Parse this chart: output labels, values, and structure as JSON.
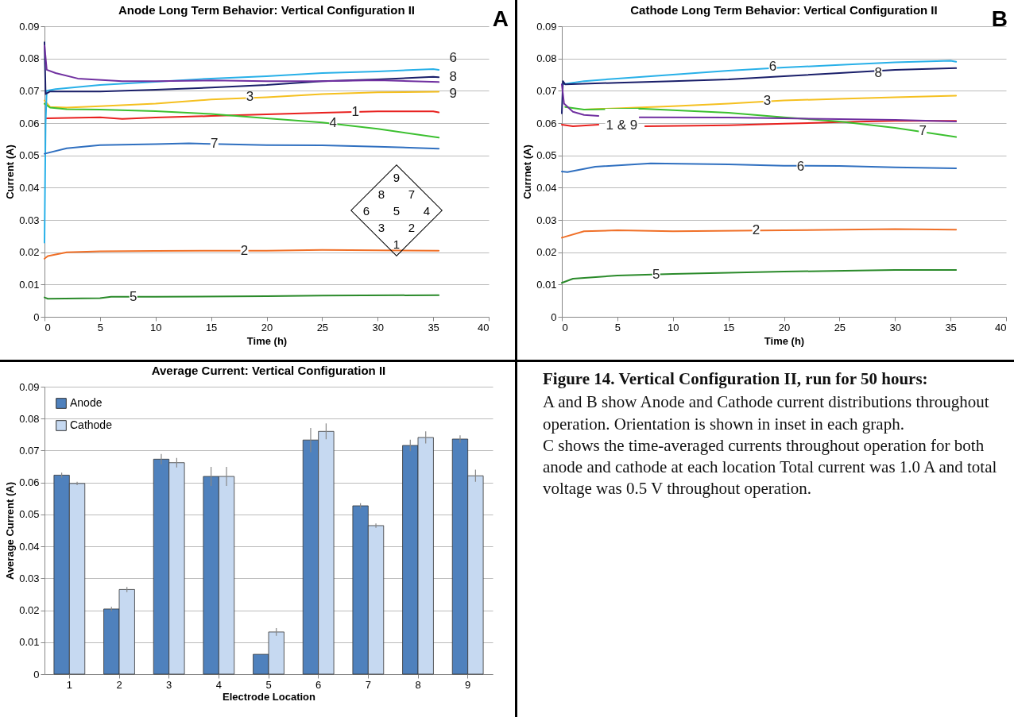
{
  "chart_data": [
    {
      "type": "line",
      "title": "Anode Long Term Behavior: Vertical Configuration II",
      "xlabel": "Time (h)",
      "ylabel": "Current (A)",
      "xlim": [
        0,
        40
      ],
      "xticks": [
        0,
        5,
        10,
        15,
        20,
        25,
        30,
        35,
        40
      ],
      "ylim": [
        0,
        0.09
      ],
      "yticks": [
        0,
        0.01,
        0.02,
        0.03,
        0.04,
        0.05,
        0.06,
        0.07,
        0.08,
        0.09
      ],
      "grid": "y",
      "series": [
        {
          "color": "#e8211f",
          "x": [
            0.2,
            5,
            7,
            10,
            15,
            20,
            25,
            30,
            35,
            35.5
          ],
          "values": [
            0.0615,
            0.0618,
            0.0613,
            0.0617,
            0.0622,
            0.0627,
            0.0632,
            0.0636,
            0.0636,
            0.0633
          ]
        },
        {
          "color": "#f07028",
          "x": [
            0,
            0.3,
            2,
            5,
            10,
            20,
            25,
            30,
            35.5
          ],
          "values": [
            0.018,
            0.0188,
            0.02,
            0.0203,
            0.0204,
            0.0205,
            0.0207,
            0.0206,
            0.0205
          ]
        },
        {
          "color": "#f5c020",
          "x": [
            0,
            0.5,
            2,
            5,
            10,
            15,
            20,
            25,
            30,
            35.5
          ],
          "values": [
            0.067,
            0.065,
            0.0648,
            0.0652,
            0.066,
            0.0673,
            0.068,
            0.069,
            0.0695,
            0.0697
          ]
        },
        {
          "color": "#3cc030",
          "x": [
            0,
            0.5,
            2,
            5,
            10,
            15,
            20,
            25,
            30,
            35.5
          ],
          "values": [
            0.066,
            0.0648,
            0.0643,
            0.0642,
            0.0637,
            0.0628,
            0.0615,
            0.0602,
            0.0582,
            0.0555
          ]
        },
        {
          "color": "#2a8a2a",
          "x": [
            0,
            0.3,
            5,
            6,
            10,
            20,
            25,
            35.5
          ],
          "values": [
            0.006,
            0.0056,
            0.0058,
            0.0062,
            0.0062,
            0.0064,
            0.0066,
            0.0067
          ]
        },
        {
          "name": "6",
          "color": "#28b0e8",
          "x": [
            0,
            0.1,
            0.2,
            1,
            5,
            10,
            15,
            20,
            25,
            30,
            35,
            35.5
          ],
          "values": [
            0.023,
            0.06,
            0.07,
            0.0705,
            0.0718,
            0.0728,
            0.0738,
            0.0745,
            0.0755,
            0.076,
            0.0767,
            0.0765
          ]
        },
        {
          "color": "#3070c0",
          "x": [
            0,
            2,
            5,
            10,
            13,
            20,
            25,
            30,
            35.5
          ],
          "values": [
            0.0505,
            0.0522,
            0.0532,
            0.0535,
            0.0537,
            0.0532,
            0.0531,
            0.0527,
            0.0521
          ]
        },
        {
          "name": "8",
          "color": "#1a1f6a",
          "x": [
            0,
            0.1,
            0.5,
            5,
            10,
            15,
            20,
            25,
            30,
            35,
            35.5
          ],
          "values": [
            0.085,
            0.069,
            0.0698,
            0.0698,
            0.0703,
            0.071,
            0.0718,
            0.073,
            0.0735,
            0.0743,
            0.0742
          ]
        },
        {
          "name": "9",
          "color": "#7030a0",
          "x": [
            0,
            0.2,
            1,
            3,
            7,
            10,
            15,
            20,
            25,
            30,
            35.5
          ],
          "values": [
            0.084,
            0.0765,
            0.0755,
            0.0738,
            0.073,
            0.073,
            0.0732,
            0.073,
            0.073,
            0.0733,
            0.0727
          ]
        }
      ],
      "annotations": [
        "A",
        "9",
        "8",
        "7",
        "6",
        "5",
        "4",
        "3",
        "2",
        "1",
        {
          "text": "3",
          "x": 18.5,
          "y": 0.068
        },
        {
          "text": "1",
          "x": 28,
          "y": 0.0634
        },
        {
          "text": "4",
          "x": 26,
          "y": 0.06
        },
        {
          "text": "7",
          "x": 15.3,
          "y": 0.0535
        },
        {
          "text": "2",
          "x": 18,
          "y": 0.0205
        },
        {
          "text": "5",
          "x": 8,
          "y": 0.0062
        }
      ]
    },
    {
      "type": "line",
      "title": "Cathode Long Term Behavior: Vertical Configuration II",
      "xlabel": "Time (h)",
      "ylabel": "Currnet (A)",
      "xlim": [
        0,
        40
      ],
      "xticks": [
        0,
        5,
        10,
        15,
        20,
        25,
        30,
        35,
        40
      ],
      "ylim": [
        0,
        0.09
      ],
      "yticks": [
        0,
        0.01,
        0.02,
        0.03,
        0.04,
        0.05,
        0.06,
        0.07,
        0.08,
        0.09
      ],
      "grid": "y",
      "series": [
        {
          "name": "1 & 9",
          "color": "#e8211f",
          "x": [
            0,
            1,
            3.3,
            5,
            7.5,
            15,
            20,
            25,
            30,
            35.5
          ],
          "values": [
            0.0595,
            0.059,
            0.0595,
            null,
            0.059,
            0.0593,
            0.0598,
            0.0603,
            0.0607,
            0.0607
          ]
        },
        {
          "color": "#f07028",
          "x": [
            0,
            2,
            5,
            10,
            20,
            30,
            35.5
          ],
          "values": [
            0.0245,
            0.0265,
            0.0268,
            0.0265,
            0.0268,
            0.0272,
            0.027
          ]
        },
        {
          "color": "#f5c020",
          "x": [
            2,
            10,
            15,
            20,
            25,
            30,
            35.5
          ],
          "values": [
            0.0642,
            0.0652,
            0.066,
            0.067,
            0.0675,
            0.068,
            0.0685
          ]
        },
        {
          "color": "#3cc030",
          "x": [
            0.3,
            2,
            7,
            10,
            15,
            20,
            25,
            30,
            35.5
          ],
          "values": [
            0.065,
            0.0642,
            0.0645,
            0.064,
            0.0632,
            0.0618,
            0.0605,
            0.0585,
            0.0557
          ]
        },
        {
          "color": "#2a8a2a",
          "x": [
            0,
            1,
            5,
            10,
            20,
            30,
            35.5
          ],
          "values": [
            0.0105,
            0.0118,
            0.0128,
            0.0133,
            0.014,
            0.0145,
            0.0145
          ]
        },
        {
          "color": "#28b0e8",
          "x": [
            0,
            2,
            5,
            10,
            15,
            20,
            25,
            30,
            35,
            35.5
          ],
          "values": [
            0.072,
            0.073,
            0.0738,
            0.075,
            0.0762,
            0.0772,
            0.078,
            0.0788,
            0.0793,
            0.079
          ]
        },
        {
          "color": "#3070c0",
          "x": [
            0,
            0.5,
            3,
            8,
            15,
            20,
            25,
            30,
            35.5
          ],
          "values": [
            0.045,
            0.0448,
            0.0465,
            0.0475,
            0.0472,
            0.0468,
            0.0467,
            0.0463,
            0.046
          ]
        },
        {
          "color": "#1a1f6a",
          "x": [
            0,
            0.1,
            0.3,
            5,
            10,
            15,
            20,
            25,
            30,
            35.5
          ],
          "values": [
            0.063,
            0.073,
            0.072,
            0.0725,
            0.073,
            0.0735,
            0.0745,
            0.0755,
            0.0765,
            0.077
          ]
        },
        {
          "color": "#7030a0",
          "x": [
            0,
            0.2,
            1,
            2,
            3.3,
            5,
            7,
            15,
            20,
            25,
            30,
            35.5
          ],
          "values": [
            0.072,
            0.066,
            0.0635,
            0.0625,
            0.0622,
            null,
            0.0618,
            0.0617,
            0.0615,
            0.0612,
            0.061,
            0.0605
          ]
        }
      ],
      "annotations": [
        "B",
        {
          "text": "6",
          "x": 19,
          "y": 0.0775
        },
        {
          "text": "8",
          "x": 28.5,
          "y": 0.0755
        },
        {
          "text": "3",
          "x": 18.5,
          "y": 0.0668
        },
        {
          "text": "7",
          "x": 32.5,
          "y": 0.0575
        },
        {
          "text": "6",
          "x": 21.5,
          "y": 0.0465
        },
        {
          "text": "2",
          "x": 17.5,
          "y": 0.0268
        },
        {
          "text": "5",
          "x": 8.5,
          "y": 0.013
        }
      ]
    },
    {
      "type": "bar",
      "title": "Average Current: Vertical Configuration II",
      "xlabel": "Electrode Location",
      "ylabel": "Average Current (A)",
      "categories": [
        "1",
        "2",
        "3",
        "4",
        "5",
        "6",
        "7",
        "8",
        "9"
      ],
      "ylim": [
        0,
        0.09
      ],
      "yticks": [
        0,
        0.01,
        0.02,
        0.03,
        0.04,
        0.05,
        0.06,
        0.07,
        0.08,
        0.09
      ],
      "grid": "y",
      "legend": "top left",
      "series": [
        {
          "name": "Anode",
          "color": "#4f81bd",
          "values": [
            0.0623,
            0.0204,
            0.0673,
            0.0619,
            0.0062,
            0.0733,
            0.0527,
            0.0716,
            0.0736
          ],
          "errors": [
            0.0008,
            0.0007,
            0.0016,
            0.003,
            null,
            0.0038,
            0.0008,
            0.0018,
            0.0012
          ]
        },
        {
          "name": "Cathode",
          "color": "#c6d9f1",
          "values": [
            0.0597,
            0.0265,
            0.0662,
            0.0619,
            0.0132,
            0.076,
            0.0465,
            0.0741,
            0.0621
          ],
          "errors": [
            0.0005,
            0.0008,
            0.0015,
            0.003,
            0.0012,
            0.0025,
            0.0007,
            0.0019,
            0.0019
          ]
        }
      ]
    },
    {
      "type": "other",
      "title": "Figure 14. Vertical Configuration II, run for 50 hours:",
      "annotations": [
        "A and B show Anode and Cathode current distributions throughout operation. Orientation is shown in inset in each graph.",
        "C shows the time-averaged currents throughout operation for both anode and cathode at each location Total current was 1.0 A and total voltage was 0.5 V throughout operation."
      ]
    }
  ]
}
